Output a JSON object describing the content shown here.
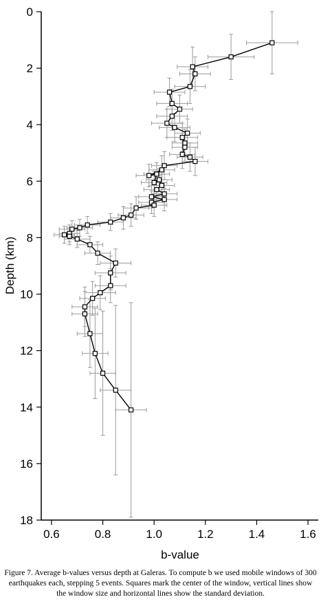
{
  "chart_data": {
    "type": "scatter",
    "xlabel": "b-value",
    "ylabel": "Depth (km)",
    "caption": "Figure 7. Average b-values versus depth at Galeras. To compute b we used mobile windows of 300 earthquakes each, stepping 5 events. Squares mark the center of the window, vertical lines show the window size and horizontal lines show the standard deviation.",
    "x": [
      1.46,
      1.3,
      1.15,
      1.16,
      1.14,
      1.06,
      1.07,
      1.1,
      1.07,
      1.05,
      1.08,
      1.13,
      1.11,
      1.12,
      1.12,
      1.11,
      1.14,
      1.16,
      1.04,
      1.03,
      0.98,
      1.01,
      1.0,
      1.02,
      1.03,
      1.01,
      1.04,
      0.99,
      1.04,
      0.99,
      1.0,
      0.93,
      0.91,
      0.88,
      0.83,
      0.74,
      0.71,
      0.68,
      0.67,
      0.65,
      0.67,
      0.7,
      0.75,
      0.78,
      0.85,
      0.83,
      0.83,
      0.79,
      0.76,
      0.73,
      0.73,
      0.75,
      0.77,
      0.8,
      0.85,
      0.91
    ],
    "y": [
      1.1,
      1.6,
      1.95,
      2.2,
      2.65,
      2.85,
      3.25,
      3.45,
      3.7,
      3.95,
      4.1,
      4.3,
      4.45,
      4.65,
      4.8,
      5.05,
      5.15,
      5.3,
      5.45,
      5.6,
      5.8,
      5.75,
      6.05,
      5.95,
      6.15,
      6.3,
      6.45,
      6.55,
      6.65,
      6.75,
      6.85,
      6.95,
      7.2,
      7.3,
      7.45,
      7.55,
      7.65,
      7.7,
      7.85,
      7.9,
      7.95,
      8.05,
      8.25,
      8.55,
      8.9,
      9.25,
      9.7,
      9.95,
      10.15,
      10.45,
      10.7,
      11.4,
      12.1,
      12.8,
      13.4,
      14.1
    ],
    "xerr": [
      0.1,
      0.09,
      0.06,
      0.06,
      0.06,
      0.06,
      0.06,
      0.05,
      0.06,
      0.06,
      0.06,
      0.05,
      0.06,
      0.05,
      0.05,
      0.05,
      0.05,
      0.05,
      0.05,
      0.05,
      0.05,
      0.05,
      0.05,
      0.05,
      0.05,
      0.05,
      0.05,
      0.05,
      0.05,
      0.05,
      0.05,
      0.05,
      0.05,
      0.05,
      0.05,
      0.05,
      0.05,
      0.05,
      0.04,
      0.04,
      0.04,
      0.05,
      0.05,
      0.05,
      0.06,
      0.06,
      0.06,
      0.06,
      0.05,
      0.05,
      0.05,
      0.05,
      0.05,
      0.05,
      0.06,
      0.06
    ],
    "yerr": [
      1.1,
      0.8,
      0.7,
      0.6,
      0.6,
      0.5,
      0.5,
      0.5,
      0.5,
      0.5,
      0.5,
      0.5,
      0.5,
      0.5,
      0.5,
      0.5,
      0.5,
      0.5,
      0.5,
      0.5,
      0.4,
      0.4,
      0.4,
      0.4,
      0.4,
      0.4,
      0.4,
      0.4,
      0.4,
      0.4,
      0.4,
      0.4,
      0.4,
      0.4,
      0.3,
      0.3,
      0.3,
      0.3,
      0.3,
      0.3,
      0.3,
      0.3,
      0.3,
      0.4,
      0.5,
      0.6,
      0.6,
      0.6,
      0.6,
      0.7,
      0.8,
      1.2,
      1.6,
      2.2,
      3.0,
      3.8
    ],
    "color": "#000000",
    "error_color": "#9a9a9a",
    "xlim": [
      0.56,
      1.64
    ],
    "ylim": [
      0,
      18
    ],
    "y_inverted": true,
    "xticks": [
      0.6,
      0.8,
      {
        "value": 1,
        "label": "1.0"
      },
      1.2,
      1.4,
      1.6
    ],
    "yticks": [
      0,
      2,
      4,
      6,
      8,
      10,
      12,
      14,
      16,
      18
    ]
  }
}
